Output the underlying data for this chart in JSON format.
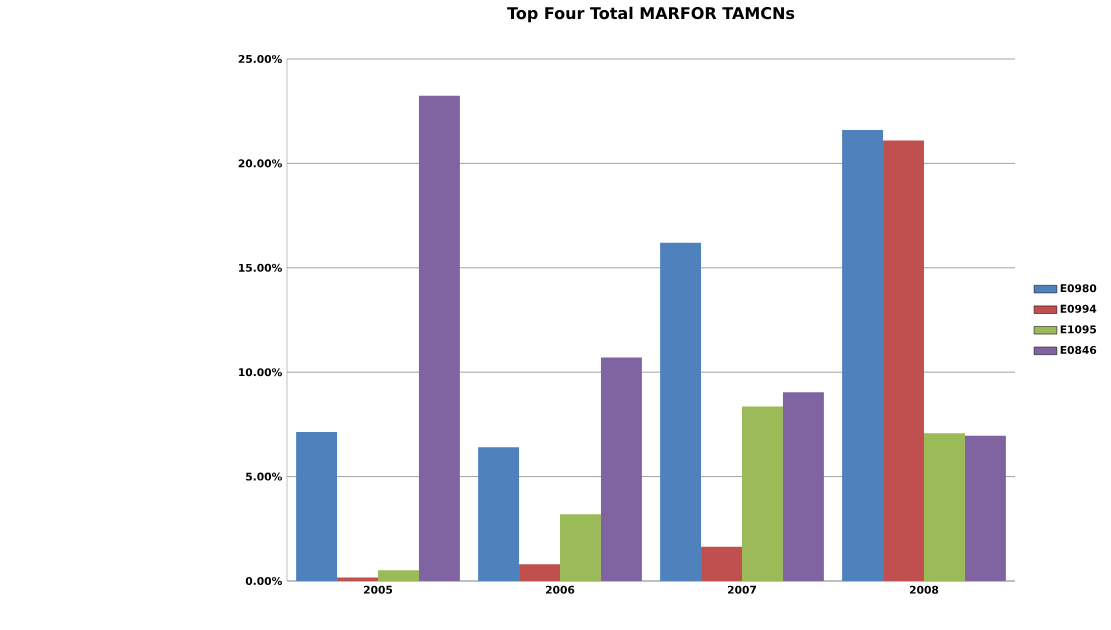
{
  "chart_data": {
    "type": "bar",
    "title": "Top Four Total MARFOR TAMCNs",
    "categories": [
      "2005",
      "2006",
      "2007",
      "2008"
    ],
    "series": [
      {
        "name": "E0980",
        "color": "#4f81bd",
        "values": [
          7.14,
          6.4,
          16.2,
          21.6
        ]
      },
      {
        "name": "E0994",
        "color": "#c0504d",
        "values": [
          0.17,
          0.8,
          1.64,
          21.1
        ]
      },
      {
        "name": "E1095",
        "color": "#9bbb59",
        "values": [
          0.51,
          3.2,
          8.36,
          7.07
        ]
      },
      {
        "name": "E0846",
        "color": "#8064a2",
        "values": [
          23.24,
          10.7,
          9.04,
          6.95
        ]
      }
    ],
    "ylim": [
      0,
      25
    ],
    "yticks": [
      {
        "value": 0,
        "label": "0.00%"
      },
      {
        "value": 5,
        "label": "5.00%"
      },
      {
        "value": 10,
        "label": "10.00%"
      },
      {
        "value": 15,
        "label": "15.00%"
      },
      {
        "value": 20,
        "label": "20.00%"
      },
      {
        "value": 25,
        "label": "25.00%"
      }
    ],
    "grid": "y",
    "legend": "right"
  }
}
